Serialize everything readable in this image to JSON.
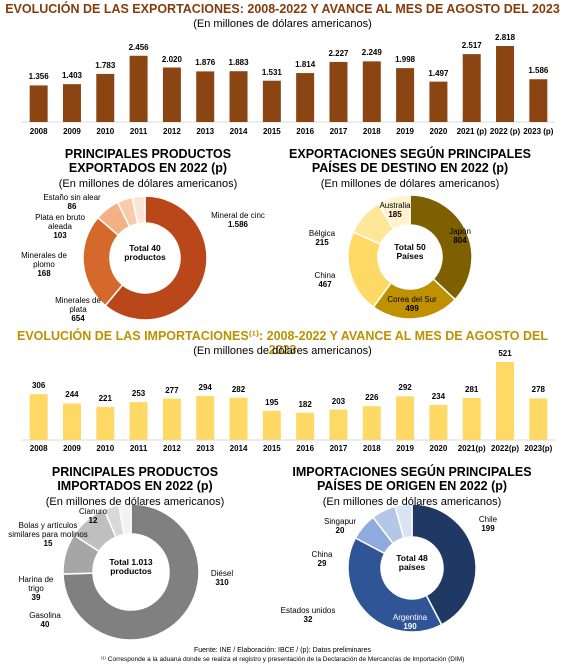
{
  "chart_data": [
    {
      "type": "bar",
      "title": "EVOLUCIÓN DE LAS EXPORTACIONES: 2008-2022 Y AVANCE AL MES DE AGOSTO DEL 2023",
      "subtitle": "(En millones de dólares americanos)",
      "title_color": "#843c0c",
      "categories": [
        "2008",
        "2009",
        "2010",
        "2011",
        "2012",
        "2013",
        "2014",
        "2015",
        "2016",
        "2017",
        "2018",
        "2019",
        "2020",
        "2021 (p)",
        "2022 (p)",
        "2023 (p)"
      ],
      "values": [
        1356,
        1403,
        1783,
        2456,
        2020,
        1876,
        1883,
        1531,
        1814,
        2227,
        2249,
        1998,
        1497,
        2517,
        2818,
        1586
      ],
      "value_labels": [
        "1.356",
        "1.403",
        "1.783",
        "2.456",
        "2.020",
        "1.876",
        "1.883",
        "1.531",
        "1.814",
        "2.227",
        "2.249",
        "1.998",
        "1.497",
        "2.517",
        "2.818",
        "1.586"
      ],
      "color": "#8b4513"
    },
    {
      "type": "donut",
      "title": "PRINCIPALES PRODUCTOS EXPORTADOS EN 2022 (p)",
      "subtitle": "(En millones de dólares americanos)",
      "center_text": "Total 40 productos",
      "categories": [
        "Mineral de cinc",
        "Minerales de plata",
        "Minerales de plomo",
        "Plata en bruto aleada",
        "Estaño sin alear"
      ],
      "values": [
        1586,
        654,
        168,
        103,
        86
      ],
      "value_labels": [
        "1.586",
        "654",
        "168",
        "103",
        "86"
      ],
      "colors": [
        "#b9471a",
        "#d5692b",
        "#f4b183",
        "#f8cbad",
        "#fbe5d6"
      ]
    },
    {
      "type": "donut",
      "title": "EXPORTACIONES SEGÚN PRINCIPALES PAÍSES DE DESTINO EN 2022 (p)",
      "subtitle": "(En millones de dólares americanos)",
      "center_text": "Total 50 Países",
      "categories": [
        "Japón",
        "Corea del Sur",
        "China",
        "Bélgica",
        "Australia"
      ],
      "values": [
        804,
        499,
        467,
        215,
        185
      ],
      "colors": [
        "#7f6000",
        "#bf9000",
        "#ffd966",
        "#ffe699",
        "#fff2cc"
      ]
    },
    {
      "type": "bar",
      "title": "EVOLUCIÓN DE LAS IMPORTACIONES⁽¹⁾: 2008-2022 Y AVANCE AL MES DE AGOSTO DEL 2023",
      "subtitle": "(En millones de dólares americanos)",
      "title_color": "#bf9000",
      "categories": [
        "2008",
        "2009",
        "2010",
        "2011",
        "2012",
        "2013",
        "2014",
        "2015",
        "2016",
        "2017",
        "2018",
        "2019",
        "2020",
        "2021(p)",
        "2022(p)",
        "2023(p)"
      ],
      "values": [
        306,
        244,
        221,
        253,
        277,
        294,
        282,
        195,
        182,
        203,
        226,
        292,
        234,
        281,
        521,
        278
      ],
      "color": "#ffd966"
    },
    {
      "type": "donut",
      "title": "PRINCIPALES PRODUCTOS IMPORTADOS EN 2022 (p)",
      "subtitle": "(En millones de dólares americanos)",
      "center_text": "Total 1.013 productos",
      "categories": [
        "Diésel",
        "Gasolina",
        "Harina de trigo",
        "Bolas y artículos similares para molinos",
        "Cianuro"
      ],
      "values": [
        310,
        40,
        39,
        15,
        12
      ],
      "colors": [
        "#808080",
        "#a6a6a6",
        "#bfbfbf",
        "#d9d9d9",
        "#f2f2f2"
      ]
    },
    {
      "type": "donut",
      "title": "IMPORTACIONES SEGÚN PRINCIPALES PAÍSES DE ORIGEN EN 2022 (p)",
      "subtitle": "(En millones de dólares americanos)",
      "center_text": "Total 48 países",
      "categories": [
        "Chile",
        "Argentina",
        "Estados unidos",
        "China",
        "Singapur"
      ],
      "values": [
        199,
        190,
        32,
        29,
        20
      ],
      "colors": [
        "#1f3864",
        "#2f5597",
        "#8faadc",
        "#b4c7e7",
        "#dae3f3"
      ]
    }
  ],
  "footer": {
    "source": "Fuente: INE / Elaboración: IBCE / (p): Datos preliminares",
    "note": "⁽¹⁾ Corresponde a la aduana donde se realiza el registro y presentación de la Declaración de Mercancías de Importación (DIM)"
  }
}
